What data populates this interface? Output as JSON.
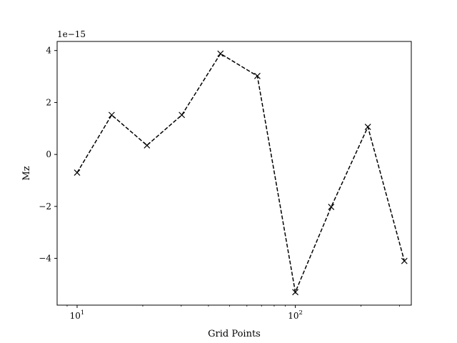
{
  "chart_data": {
    "type": "line",
    "xlabel": "Grid Points",
    "ylabel": "Mz",
    "offset_label": "1e−15",
    "x_scale": "log",
    "xlim": [
      8.1,
      340
    ],
    "ylim": [
      -5.8,
      4.35
    ],
    "x_ticks": [
      {
        "value": 10,
        "base": "10",
        "exp": "1"
      },
      {
        "value": 100,
        "base": "10",
        "exp": "2"
      }
    ],
    "y_ticks": [
      {
        "value": -4,
        "label": "−4"
      },
      {
        "value": -2,
        "label": "−2"
      },
      {
        "value": 0,
        "label": "0"
      },
      {
        "value": 2,
        "label": "2"
      },
      {
        "value": 4,
        "label": "4"
      }
    ],
    "series": [
      {
        "color": "#000000",
        "line_style": "dashed",
        "marker": "x",
        "x": [
          10,
          14.4,
          20.9,
          30.2,
          45.4,
          67,
          100,
          146,
          215,
          316
        ],
        "y": [
          -0.7,
          1.52,
          0.35,
          1.52,
          3.88,
          3.02,
          -5.3,
          -2.02,
          1.06,
          -4.1
        ]
      }
    ],
    "grid": false
  }
}
